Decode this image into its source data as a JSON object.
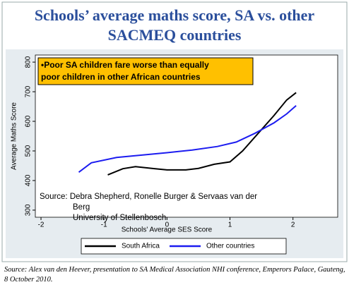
{
  "chart_data": {
    "type": "line",
    "title_lines": [
      "Schools’ average maths score, SA vs. other",
      "SACMEQ countries"
    ],
    "annotation_lines": [
      "•Poor SA children fare worse than equally",
      "poor children in other African countries"
    ],
    "source_lines": [
      "Source:   Debra Shepherd, Ronelle Burger & Servaas van der",
      "Berg",
      "University of Stellenbosch"
    ],
    "x_label": "Schools' Average SES Score",
    "y_label": "Average Maths Score",
    "xlim": [
      -2.09,
      2.71
    ],
    "xticks": [
      -2,
      -1,
      0,
      1,
      2
    ],
    "ylim": [
      276,
      824
    ],
    "yticks": [
      300,
      400,
      500,
      600,
      700,
      800
    ],
    "series": [
      {
        "name": "South Africa",
        "color": "#000000",
        "x": [
          -0.94,
          -0.7,
          -0.5,
          -0.2,
          0,
          0.3,
          0.5,
          0.75,
          1.0,
          1.2,
          1.45,
          1.7,
          1.9,
          2.05
        ],
        "values": [
          419,
          440,
          447,
          440,
          436,
          436,
          441,
          455,
          463,
          500,
          560,
          620,
          672,
          697
        ]
      },
      {
        "name": "Other countries",
        "color": "#1c1cf0",
        "x": [
          -1.4,
          -1.2,
          -0.8,
          -0.4,
          0,
          0.4,
          0.8,
          1.1,
          1.4,
          1.7,
          1.9,
          2.05
        ],
        "values": [
          428,
          460,
          478,
          486,
          494,
          503,
          515,
          530,
          560,
          595,
          625,
          653
        ]
      }
    ]
  },
  "caption": "Source: Alex van den Heever, presentation to SA Medical Association NHI conference, Emperors Palace, Gauteng, 8 October 2010."
}
